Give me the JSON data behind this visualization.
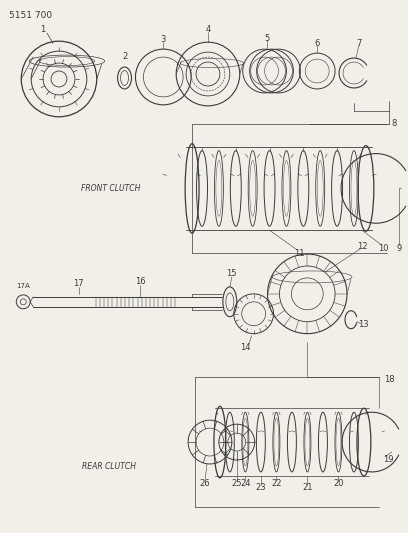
{
  "title": "5151 700",
  "front_clutch_label": "FRONT CLUTCH",
  "rear_clutch_label": "REAR CLUTCH",
  "bg_color": "#f2efe9",
  "line_color": "#3a3a3a",
  "label_fontsize": 5.5,
  "title_fontsize": 6.5
}
